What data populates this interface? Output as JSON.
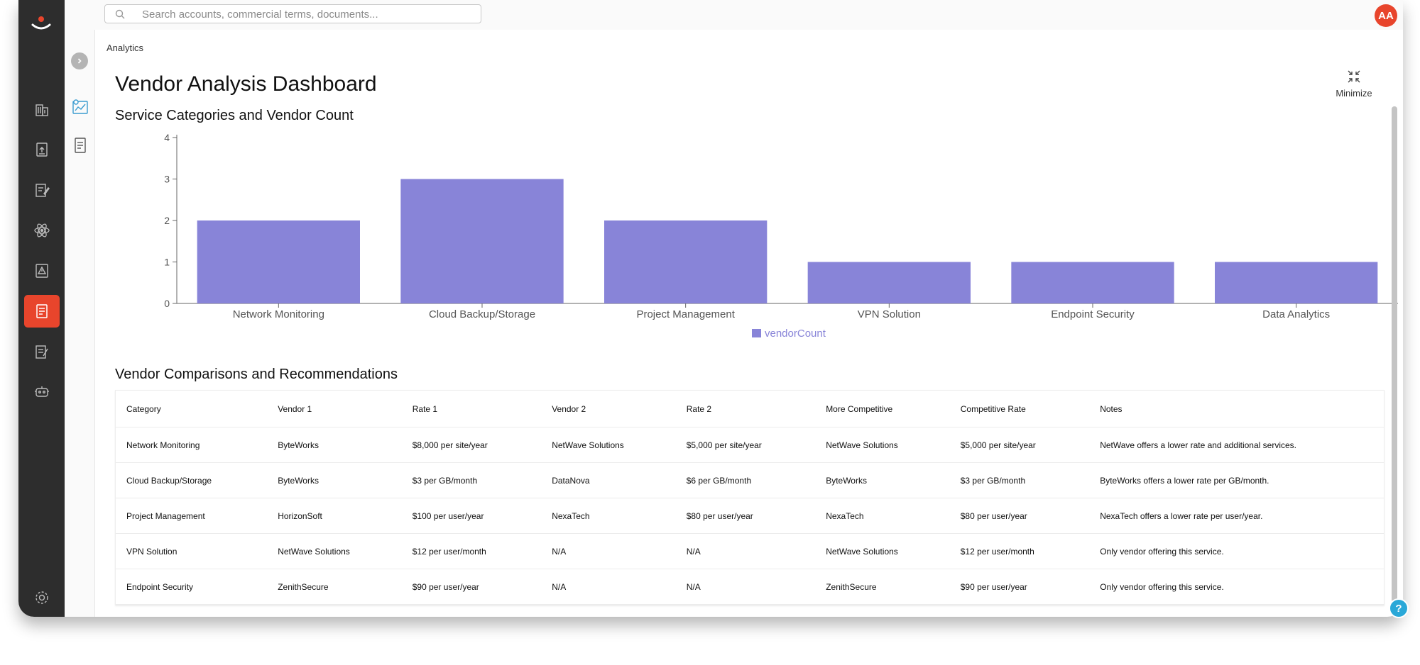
{
  "search": {
    "placeholder": "Search accounts, commercial terms, documents..."
  },
  "user": {
    "initials": "AA"
  },
  "breadcrumb": "Analytics",
  "page_title": "Vendor Analysis Dashboard",
  "minimize_label": "Minimize",
  "chart_section_title": "Service Categories and Vendor Count",
  "table_section_title": "Vendor Comparisons and Recommendations",
  "chart_data": {
    "type": "bar",
    "categories": [
      "Network Monitoring",
      "Cloud Backup/Storage",
      "Project Management",
      "VPN Solution",
      "Endpoint Security",
      "Data Analytics"
    ],
    "series": [
      {
        "name": "vendorCount",
        "values": [
          2,
          3,
          2,
          1,
          1,
          1
        ],
        "color": "#8884d8"
      }
    ],
    "ylim": [
      0,
      4
    ],
    "yticks": [
      0,
      1,
      2,
      3,
      4
    ],
    "legend": "bottom-center",
    "grid": false
  },
  "table": {
    "columns": [
      "Category",
      "Vendor 1",
      "Rate 1",
      "Vendor 2",
      "Rate 2",
      "More Competitive",
      "Competitive Rate",
      "Notes"
    ],
    "rows": [
      [
        "Network Monitoring",
        "ByteWorks",
        "$8,000 per site/year",
        "NetWave Solutions",
        "$5,000 per site/year",
        "NetWave Solutions",
        "$5,000 per site/year",
        "NetWave offers a lower rate and additional services."
      ],
      [
        "Cloud Backup/Storage",
        "ByteWorks",
        "$3 per GB/month",
        "DataNova",
        "$6 per GB/month",
        "ByteWorks",
        "$3 per GB/month",
        "ByteWorks offers a lower rate per GB/month."
      ],
      [
        "Project Management",
        "HorizonSoft",
        "$100 per user/year",
        "NexaTech",
        "$80 per user/year",
        "NexaTech",
        "$80 per user/year",
        "NexaTech offers a lower rate per user/year."
      ],
      [
        "VPN Solution",
        "NetWave Solutions",
        "$12 per user/month",
        "N/A",
        "N/A",
        "NetWave Solutions",
        "$12 per user/month",
        "Only vendor offering this service."
      ],
      [
        "Endpoint Security",
        "ZenithSecure",
        "$90 per user/year",
        "N/A",
        "N/A",
        "ZenithSecure",
        "$90 per user/year",
        "Only vendor offering this service."
      ]
    ]
  },
  "nav": {
    "items": [
      "building-icon",
      "upload-document-icon",
      "edit-document-icon",
      "atom-icon",
      "alert-document-icon",
      "report-icon",
      "checklist-icon",
      "robot-icon",
      "settings-icon"
    ],
    "active": "report-icon"
  },
  "help_label": "?"
}
